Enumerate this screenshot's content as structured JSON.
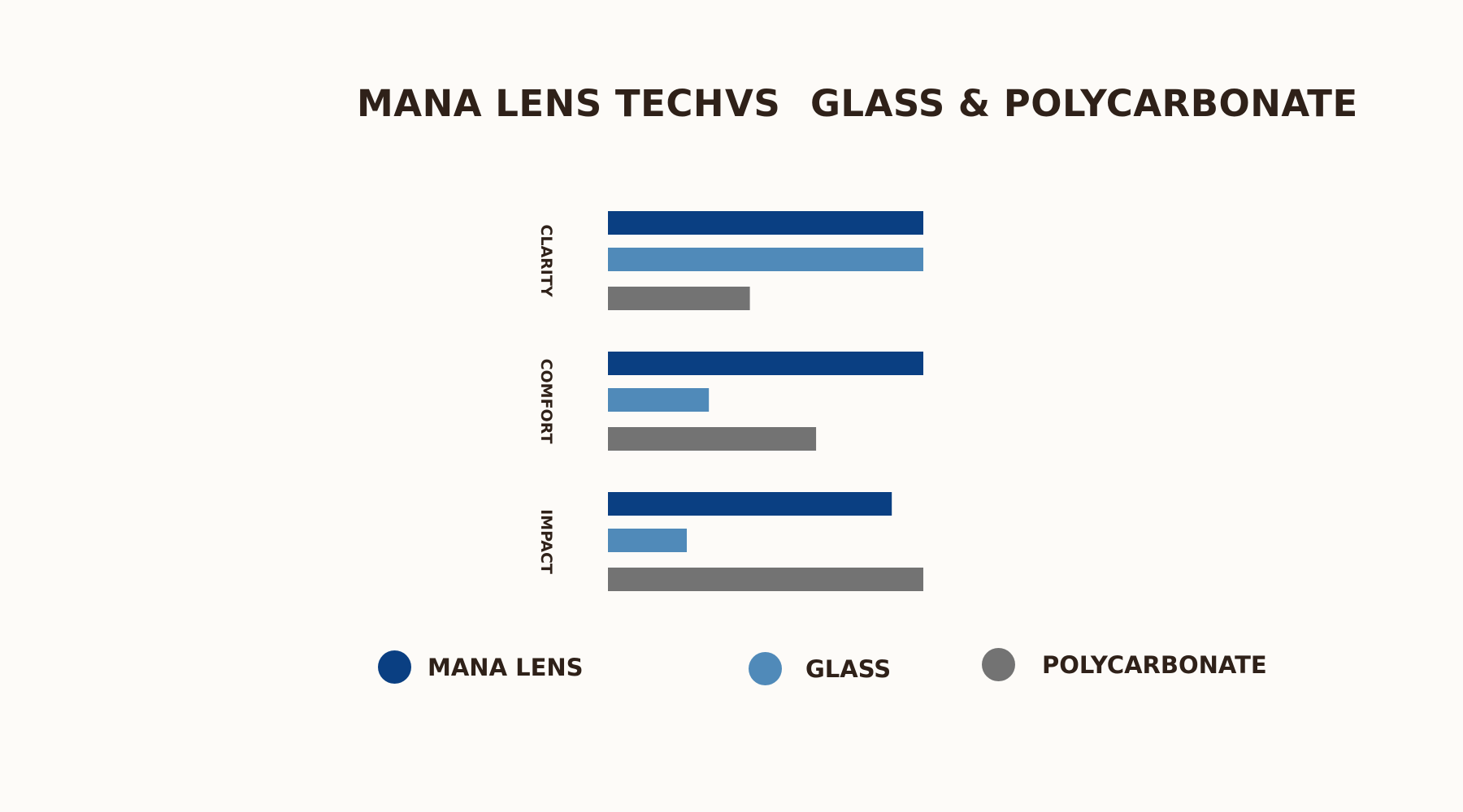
{
  "title": {
    "left": "MANA LENS TECH",
    "middle": "VS",
    "right": "GLASS & POLYCARBONATE"
  },
  "chart_data": {
    "type": "bar",
    "orientation": "horizontal",
    "categories": [
      "CLARITY",
      "COMFORT",
      "IMPACT"
    ],
    "series": [
      {
        "name": "MANA LENS",
        "color": "#0a3f82",
        "values": [
          100,
          100,
          90
        ]
      },
      {
        "name": "GLASS",
        "color": "#508ab9",
        "values": [
          100,
          32,
          25
        ]
      },
      {
        "name": "POLYCARBONATE",
        "color": "#737373",
        "values": [
          45,
          66,
          100
        ]
      }
    ],
    "xlim": [
      0,
      100
    ],
    "grid": false,
    "axes_visible": false,
    "legend_position": "bottom"
  },
  "legend": [
    {
      "label": "MANA LENS",
      "color": "#0a3f82"
    },
    {
      "label": "GLASS",
      "color": "#508ab9"
    },
    {
      "label": "POLYCARBONATE",
      "color": "#737373"
    }
  ]
}
